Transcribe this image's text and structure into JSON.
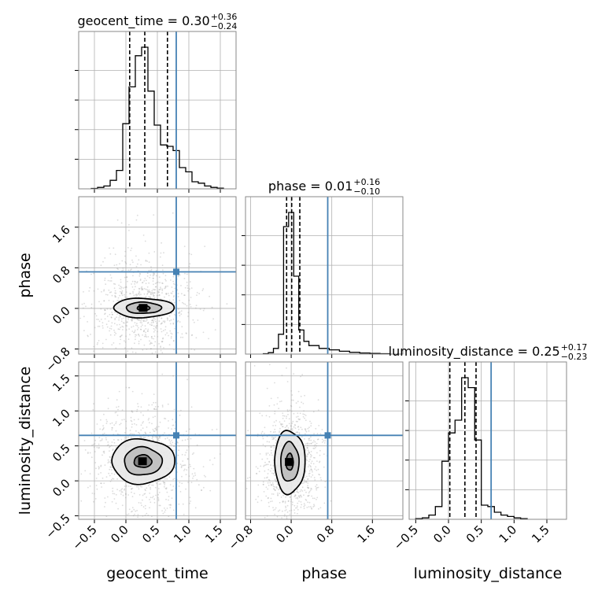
{
  "chart_data": {
    "type": "corner",
    "parameters": [
      "geocent_time",
      "phase",
      "luminosity_distance"
    ],
    "truths": {
      "geocent_time": 0.8,
      "phase": 0.72,
      "luminosity_distance": 0.65
    },
    "colors": {
      "truth": "#4682b4",
      "contour": "#000000",
      "scatter": "#9a9a9a",
      "grid": "#b0b0b0"
    },
    "grid": true,
    "panels": [
      {
        "id": "hist-geocent_time",
        "type": "histogram",
        "title": {
          "label": "geocent_time",
          "value": "0.30",
          "plus": "+0.36",
          "minus": "−0.24"
        },
        "xlim": [
          -0.75,
          1.75
        ],
        "quantiles": [
          0.06,
          0.3,
          0.66
        ],
        "bins": [
          [
            -0.55,
            -0.45,
            0.003
          ],
          [
            -0.45,
            -0.35,
            0.01
          ],
          [
            -0.35,
            -0.25,
            0.02
          ],
          [
            -0.25,
            -0.15,
            0.06
          ],
          [
            -0.15,
            -0.05,
            0.13
          ],
          [
            -0.05,
            0.05,
            0.46
          ],
          [
            0.05,
            0.15,
            0.72
          ],
          [
            0.15,
            0.25,
            0.94
          ],
          [
            0.25,
            0.35,
            1.0
          ],
          [
            0.35,
            0.45,
            0.69
          ],
          [
            0.45,
            0.55,
            0.45
          ],
          [
            0.55,
            0.65,
            0.31
          ],
          [
            0.65,
            0.75,
            0.3
          ],
          [
            0.75,
            0.85,
            0.27
          ],
          [
            0.85,
            0.95,
            0.15
          ],
          [
            0.95,
            1.05,
            0.12
          ],
          [
            1.05,
            1.15,
            0.05
          ],
          [
            1.15,
            1.25,
            0.04
          ],
          [
            1.25,
            1.35,
            0.02
          ],
          [
            1.35,
            1.45,
            0.01
          ],
          [
            1.45,
            1.55,
            0.005
          ]
        ]
      },
      {
        "id": "hist-phase",
        "type": "histogram",
        "title": {
          "label": "phase",
          "value": "0.01",
          "plus": "+0.16",
          "minus": "−0.10"
        },
        "xlim": [
          -0.9,
          2.2
        ],
        "quantiles": [
          -0.09,
          0.01,
          0.17
        ],
        "bins": [
          [
            -0.55,
            -0.45,
            0.003
          ],
          [
            -0.45,
            -0.35,
            0.01
          ],
          [
            -0.35,
            -0.25,
            0.04
          ],
          [
            -0.25,
            -0.15,
            0.14
          ],
          [
            -0.15,
            -0.05,
            0.9
          ],
          [
            -0.05,
            0.05,
            1.0
          ],
          [
            0.05,
            0.15,
            0.55
          ],
          [
            0.15,
            0.25,
            0.17
          ],
          [
            0.25,
            0.35,
            0.09
          ],
          [
            0.35,
            0.55,
            0.06
          ],
          [
            0.55,
            0.75,
            0.04
          ],
          [
            0.75,
            0.95,
            0.03
          ],
          [
            0.95,
            1.15,
            0.02
          ],
          [
            1.15,
            1.35,
            0.012
          ],
          [
            1.35,
            1.55,
            0.008
          ],
          [
            1.55,
            1.75,
            0.005
          ],
          [
            1.75,
            1.95,
            0.003
          ]
        ]
      },
      {
        "id": "hist-luminosity_distance",
        "type": "histogram",
        "title": {
          "label": "luminosity_distance",
          "value": "0.25",
          "plus": "+0.17",
          "minus": "−0.23"
        },
        "xlim": [
          -0.6,
          1.8
        ],
        "quantiles": [
          0.02,
          0.25,
          0.42
        ],
        "bins": [
          [
            -0.5,
            -0.4,
            0.005
          ],
          [
            -0.4,
            -0.3,
            0.01
          ],
          [
            -0.3,
            -0.2,
            0.03
          ],
          [
            -0.2,
            -0.1,
            0.09
          ],
          [
            -0.1,
            0.0,
            0.41
          ],
          [
            0.0,
            0.1,
            0.61
          ],
          [
            0.1,
            0.2,
            0.7
          ],
          [
            0.2,
            0.3,
            1.0
          ],
          [
            0.3,
            0.4,
            0.93
          ],
          [
            0.4,
            0.5,
            0.56
          ],
          [
            0.5,
            0.6,
            0.1
          ],
          [
            0.6,
            0.7,
            0.09
          ],
          [
            0.7,
            0.8,
            0.05
          ],
          [
            0.8,
            0.9,
            0.03
          ],
          [
            0.9,
            1.0,
            0.02
          ],
          [
            1.0,
            1.1,
            0.01
          ],
          [
            1.1,
            1.2,
            0.005
          ]
        ]
      },
      {
        "id": "kde-phase-vs-geocent_time",
        "type": "2d-contour",
        "x": "geocent_time",
        "y": "phase",
        "xlim": [
          -0.75,
          1.75
        ],
        "ylim": [
          -0.9,
          2.2
        ],
        "center": [
          0.28,
          0.01
        ],
        "levels_sigma": [
          [
            0.1,
            0.05
          ],
          [
            0.28,
            0.11
          ],
          [
            0.48,
            0.19
          ]
        ],
        "scatter_sigma": [
          0.42,
          0.45
        ]
      },
      {
        "id": "kde-luminosity_distance-vs-geocent_time",
        "type": "2d-contour",
        "x": "geocent_time",
        "y": "luminosity_distance",
        "xlim": [
          -0.75,
          1.75
        ],
        "ylim": [
          -0.55,
          1.7
        ],
        "center": [
          0.27,
          0.28
        ],
        "levels_sigma": [
          [
            0.14,
            0.09
          ],
          [
            0.3,
            0.2
          ],
          [
            0.5,
            0.32
          ]
        ],
        "scatter_sigma": [
          0.42,
          0.36
        ]
      },
      {
        "id": "kde-luminosity_distance-vs-phase",
        "type": "2d-contour",
        "x": "phase",
        "y": "luminosity_distance",
        "xlim": [
          -0.9,
          2.2
        ],
        "ylim": [
          -0.55,
          1.7
        ],
        "center": [
          -0.03,
          0.27
        ],
        "levels_sigma": [
          [
            0.07,
            0.12
          ],
          [
            0.18,
            0.28
          ],
          [
            0.3,
            0.45
          ]
        ],
        "scatter_sigma": [
          0.3,
          0.4
        ]
      }
    ],
    "ticks": {
      "geocent_time": [
        "−0.5",
        "0.0",
        "0.5",
        "1.0",
        "1.5"
      ],
      "phase": [
        "−0.8",
        "0.0",
        "0.8",
        "1.6"
      ],
      "luminosity_distance": [
        "−0.5",
        "0.0",
        "0.5",
        "1.0",
        "1.5"
      ]
    },
    "tick_values": {
      "geocent_time": [
        -0.5,
        0.0,
        0.5,
        1.0,
        1.5
      ],
      "phase": [
        -0.8,
        0.0,
        0.8,
        1.6
      ],
      "luminosity_distance": [
        -0.5,
        0.0,
        0.5,
        1.0,
        1.5
      ]
    },
    "axis_labels": {
      "x": [
        "geocent_time",
        "phase",
        "luminosity_distance"
      ],
      "y": [
        "phase",
        "luminosity_distance"
      ]
    }
  }
}
